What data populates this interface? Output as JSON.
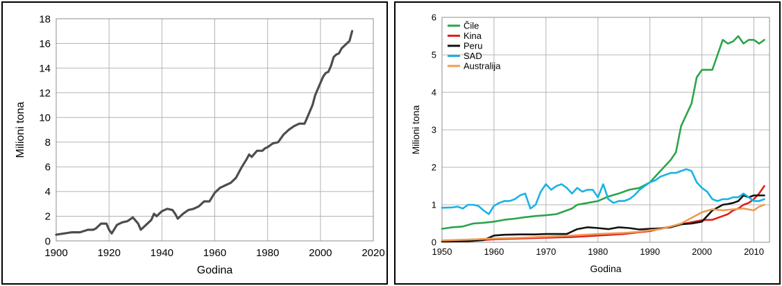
{
  "chart_data": [
    {
      "type": "line",
      "xlabel": "Godina",
      "ylabel": "Milioni tona",
      "xlim": [
        1900,
        2020
      ],
      "ylim": [
        0,
        18
      ],
      "xticks": [
        "1900",
        "1920",
        "1940",
        "1960",
        "1980",
        "2000",
        "2020"
      ],
      "yticks": [
        "0",
        "2",
        "4",
        "6",
        "8",
        "10",
        "12",
        "14",
        "16",
        "18"
      ],
      "grid": true,
      "series": [
        {
          "color": "#4d4d4d",
          "x": [
            1900,
            1903,
            1906,
            1909,
            1912,
            1914,
            1915,
            1917,
            1919,
            1920,
            1921,
            1923,
            1925,
            1927,
            1929,
            1931,
            1932,
            1934,
            1936,
            1937,
            1938,
            1940,
            1942,
            1944,
            1945,
            1946,
            1948,
            1950,
            1952,
            1954,
            1956,
            1958,
            1960,
            1962,
            1964,
            1966,
            1968,
            1970,
            1972,
            1973,
            1974,
            1976,
            1978,
            1979,
            1980,
            1982,
            1984,
            1986,
            1988,
            1990,
            1992,
            1994,
            1995,
            1997,
            1998,
            2000,
            2001,
            2002,
            2003,
            2004,
            2005,
            2006,
            2007,
            2008,
            2009,
            2010,
            2011,
            2012
          ],
          "y": [
            0.5,
            0.6,
            0.7,
            0.7,
            0.9,
            0.9,
            1.0,
            1.4,
            1.4,
            0.9,
            0.6,
            1.3,
            1.5,
            1.6,
            1.9,
            1.4,
            0.9,
            1.3,
            1.7,
            2.2,
            2.0,
            2.4,
            2.6,
            2.5,
            2.2,
            1.8,
            2.2,
            2.5,
            2.6,
            2.8,
            3.2,
            3.2,
            3.9,
            4.3,
            4.5,
            4.7,
            5.1,
            5.9,
            6.6,
            7.0,
            6.8,
            7.3,
            7.3,
            7.5,
            7.6,
            7.9,
            8.0,
            8.6,
            9.0,
            9.3,
            9.5,
            9.5,
            10.0,
            11.0,
            11.8,
            12.8,
            13.3,
            13.6,
            13.7,
            14.2,
            14.9,
            15.1,
            15.2,
            15.6,
            15.8,
            16.0,
            16.2,
            17.0
          ]
        }
      ]
    },
    {
      "type": "line",
      "xlabel": "Godina",
      "ylabel": "Milioni tona",
      "xlim": [
        1950,
        2013
      ],
      "ylim": [
        0,
        6
      ],
      "xticks": [
        "1950",
        "1960",
        "1970",
        "1980",
        "1990",
        "2000",
        "2010"
      ],
      "yticks": [
        "0",
        "1",
        "2",
        "3",
        "4",
        "5",
        "6"
      ],
      "grid": true,
      "legend": "top-left",
      "series": [
        {
          "name": "Čile",
          "color": "#2aa44a",
          "x": [
            1950,
            1952,
            1954,
            1956,
            1958,
            1960,
            1962,
            1964,
            1966,
            1968,
            1970,
            1972,
            1974,
            1975,
            1976,
            1978,
            1980,
            1982,
            1984,
            1986,
            1988,
            1990,
            1992,
            1994,
            1995,
            1996,
            1998,
            1999,
            2000,
            2002,
            2003,
            2004,
            2005,
            2006,
            2007,
            2008,
            2009,
            2010,
            2011,
            2012
          ],
          "y": [
            0.36,
            0.4,
            0.42,
            0.5,
            0.52,
            0.55,
            0.6,
            0.63,
            0.67,
            0.7,
            0.72,
            0.75,
            0.85,
            0.9,
            1.0,
            1.05,
            1.1,
            1.22,
            1.3,
            1.4,
            1.45,
            1.6,
            1.9,
            2.2,
            2.4,
            3.1,
            3.7,
            4.4,
            4.6,
            4.6,
            5.0,
            5.4,
            5.3,
            5.36,
            5.5,
            5.3,
            5.4,
            5.4,
            5.3,
            5.4
          ]
        },
        {
          "name": "Kina",
          "color": "#e0201c",
          "x": [
            1950,
            1955,
            1960,
            1965,
            1970,
            1975,
            1980,
            1985,
            1990,
            1995,
            2000,
            2002,
            2004,
            2005,
            2006,
            2007,
            2008,
            2009,
            2010,
            2011,
            2012
          ],
          "y": [
            0.02,
            0.03,
            0.08,
            0.1,
            0.12,
            0.14,
            0.18,
            0.22,
            0.3,
            0.45,
            0.59,
            0.6,
            0.7,
            0.75,
            0.85,
            0.9,
            1.0,
            1.05,
            1.15,
            1.3,
            1.5
          ]
        },
        {
          "name": "Peru",
          "color": "#111111",
          "x": [
            1950,
            1955,
            1958,
            1960,
            1962,
            1965,
            1968,
            1970,
            1972,
            1974,
            1976,
            1978,
            1980,
            1982,
            1984,
            1986,
            1988,
            1990,
            1992,
            1994,
            1996,
            1998,
            2000,
            2002,
            2004,
            2005,
            2006,
            2007,
            2008,
            2009,
            2010,
            2011,
            2012
          ],
          "y": [
            0.02,
            0.03,
            0.06,
            0.18,
            0.2,
            0.21,
            0.21,
            0.22,
            0.22,
            0.22,
            0.35,
            0.4,
            0.38,
            0.35,
            0.4,
            0.38,
            0.34,
            0.36,
            0.37,
            0.4,
            0.48,
            0.5,
            0.55,
            0.85,
            1.0,
            1.02,
            1.05,
            1.1,
            1.25,
            1.2,
            1.25,
            1.25,
            1.25
          ]
        },
        {
          "name": "SAD",
          "color": "#19b2e6",
          "x": [
            1950,
            1952,
            1953,
            1954,
            1955,
            1956,
            1957,
            1958,
            1959,
            1960,
            1961,
            1962,
            1963,
            1964,
            1965,
            1966,
            1967,
            1968,
            1969,
            1970,
            1971,
            1972,
            1973,
            1974,
            1975,
            1976,
            1977,
            1978,
            1979,
            1980,
            1981,
            1982,
            1983,
            1984,
            1985,
            1986,
            1987,
            1988,
            1989,
            1990,
            1991,
            1992,
            1993,
            1994,
            1995,
            1996,
            1997,
            1998,
            1999,
            2000,
            2001,
            2002,
            2003,
            2004,
            2005,
            2006,
            2007,
            2008,
            2009,
            2010,
            2011,
            2012
          ],
          "y": [
            0.92,
            0.93,
            0.95,
            0.9,
            1.0,
            1.0,
            0.97,
            0.85,
            0.75,
            0.97,
            1.05,
            1.1,
            1.1,
            1.15,
            1.25,
            1.3,
            0.9,
            1.0,
            1.35,
            1.55,
            1.4,
            1.5,
            1.55,
            1.45,
            1.3,
            1.45,
            1.35,
            1.4,
            1.4,
            1.2,
            1.55,
            1.15,
            1.05,
            1.1,
            1.1,
            1.15,
            1.25,
            1.4,
            1.5,
            1.6,
            1.65,
            1.75,
            1.8,
            1.85,
            1.85,
            1.9,
            1.95,
            1.9,
            1.6,
            1.45,
            1.35,
            1.15,
            1.1,
            1.15,
            1.15,
            1.2,
            1.2,
            1.3,
            1.2,
            1.1,
            1.1,
            1.15
          ]
        },
        {
          "name": "Australija",
          "color": "#f09a50",
          "x": [
            1950,
            1955,
            1960,
            1965,
            1970,
            1975,
            1980,
            1985,
            1988,
            1990,
            1992,
            1994,
            1996,
            1998,
            2000,
            2002,
            2004,
            2006,
            2008,
            2010,
            2011,
            2012
          ],
          "y": [
            0.05,
            0.07,
            0.1,
            0.12,
            0.15,
            0.18,
            0.22,
            0.25,
            0.28,
            0.32,
            0.35,
            0.42,
            0.5,
            0.65,
            0.8,
            0.88,
            0.85,
            0.88,
            0.9,
            0.85,
            0.95,
            1.0
          ]
        }
      ]
    }
  ]
}
